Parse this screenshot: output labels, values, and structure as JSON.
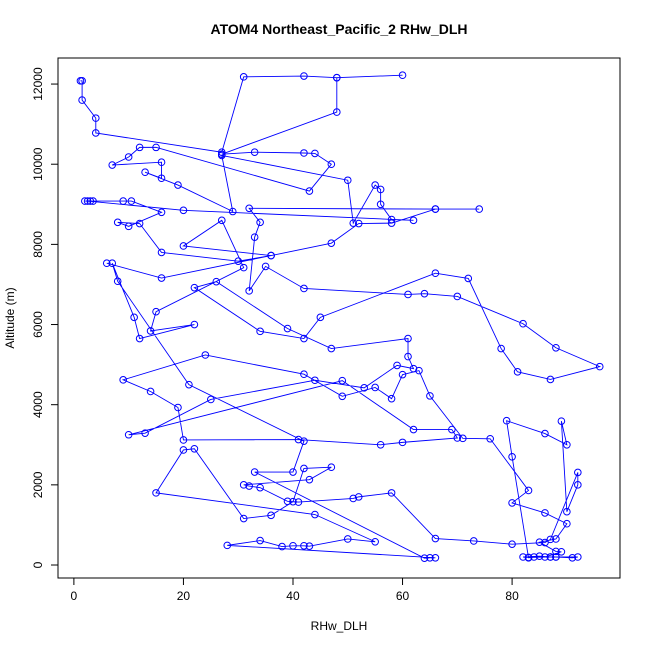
{
  "chart_data": {
    "type": "line",
    "title": "ATOM4 Northeast_Pacific_2 RHw_DLH",
    "x_label": "RHw_DLH",
    "y_label": "Altitude (m)",
    "color": "#0000ff",
    "xlim": [
      -2.9,
      99.7
    ],
    "ylim": [
      -324,
      12650
    ],
    "xticks": [
      0,
      20,
      40,
      60,
      80
    ],
    "yticks": [
      0,
      2000,
      4000,
      6000,
      8000,
      10000,
      12000
    ],
    "x": [
      1.2,
      1.5,
      1.5,
      4,
      4,
      27,
      31,
      42,
      48,
      60,
      48,
      48,
      27,
      33,
      42,
      44,
      47,
      43,
      15,
      12,
      10,
      7,
      16,
      16,
      13,
      19,
      29,
      27,
      50,
      51,
      55,
      56,
      56,
      58,
      62,
      20,
      2.5,
      2,
      3,
      3.5,
      9,
      10.5,
      16,
      10,
      8,
      12,
      16,
      30,
      36,
      47,
      52,
      58,
      66,
      74,
      66,
      32,
      34,
      33,
      32,
      35,
      42,
      61,
      64,
      70,
      82,
      88,
      96,
      87,
      81,
      78,
      72,
      66,
      45,
      42,
      34,
      22,
      26,
      39,
      47,
      61,
      61,
      62,
      59,
      53,
      44,
      25,
      13,
      10,
      49,
      62,
      69,
      70,
      60,
      56,
      41,
      20,
      19,
      14,
      9,
      24,
      42,
      49,
      55,
      58,
      60,
      63,
      65,
      71,
      76,
      83,
      80,
      86,
      90,
      88,
      85,
      88,
      89,
      86,
      83,
      82,
      85,
      87,
      88,
      92,
      91,
      88,
      87,
      84,
      83,
      80,
      79,
      86,
      90,
      89,
      90,
      92,
      92,
      87,
      86,
      80,
      73,
      66,
      58,
      52,
      51,
      41,
      39,
      34,
      32,
      31,
      43,
      47,
      42,
      40,
      36,
      31,
      22,
      20,
      15,
      44,
      55,
      50,
      43,
      42,
      40,
      38,
      34,
      28,
      66,
      65,
      64,
      33,
      40,
      42,
      21,
      8,
      7,
      11,
      12,
      22,
      14,
      15,
      31,
      27,
      20,
      36,
      16,
      6
    ],
    "values": [
      12080,
      12080,
      11600,
      11150,
      10780,
      10300,
      12180,
      12200,
      12160,
      12220,
      12160,
      11300,
      10250,
      10300,
      10280,
      10270,
      10000,
      9330,
      10420,
      10420,
      10180,
      9980,
      10050,
      9650,
      9800,
      9480,
      8820,
      10220,
      9600,
      8530,
      9480,
      9370,
      9000,
      8620,
      8600,
      8850,
      9080,
      9080,
      9080,
      9080,
      9080,
      9080,
      8800,
      8450,
      8550,
      8520,
      7800,
      7580,
      7720,
      8030,
      8520,
      8530,
      8880,
      8880,
      8880,
      8900,
      8550,
      8180,
      6840,
      7450,
      6900,
      6750,
      6770,
      6700,
      6020,
      5420,
      4950,
      4630,
      4820,
      5400,
      7150,
      7280,
      6180,
      5650,
      5830,
      6920,
      7070,
      5900,
      5400,
      5650,
      5200,
      4900,
      4980,
      4420,
      4610,
      4130,
      3290,
      3250,
      4600,
      3380,
      3380,
      3170,
      3060,
      3000,
      3130,
      3120,
      3930,
      4330,
      4620,
      5240,
      4760,
      4210,
      4430,
      4150,
      4750,
      4850,
      4220,
      3160,
      3150,
      1860,
      1550,
      1300,
      1030,
      650,
      570,
      340,
      330,
      200,
      190,
      200,
      220,
      200,
      200,
      200,
      180,
      200,
      200,
      200,
      180,
      2700,
      3600,
      3280,
      3000,
      3590,
      1330,
      2000,
      2310,
      640,
      560,
      520,
      600,
      660,
      1800,
      1700,
      1660,
      1570,
      1590,
      1930,
      1970,
      2000,
      2130,
      2440,
      2410,
      1580,
      1240,
      1160,
      2900,
      2870,
      1800,
      1260,
      580,
      650,
      470,
      480,
      480,
      460,
      610,
      490,
      180,
      180,
      170,
      2320,
      2320,
      3090,
      4500,
      7080,
      7530,
      6180,
      5650,
      6000,
      5840,
      6320,
      7420,
      8600,
      7960,
      7720,
      7160,
      7530
    ]
  }
}
